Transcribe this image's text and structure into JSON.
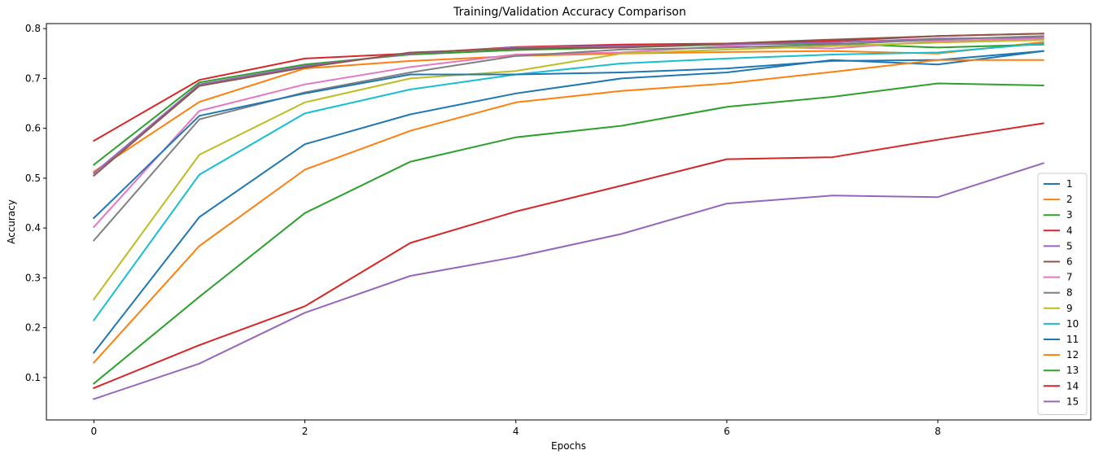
{
  "chart_data": {
    "type": "line",
    "title": "Training/Validation Accuracy Comparison",
    "xlabel": "Epochs",
    "ylabel": "Accuracy",
    "xlim": [
      -0.45,
      9.45
    ],
    "ylim": [
      0.015,
      0.81
    ],
    "xticks": [
      0,
      2,
      4,
      6,
      8
    ],
    "yticks": [
      0.1,
      0.2,
      0.3,
      0.4,
      0.5,
      0.6,
      0.7,
      0.8
    ],
    "x": [
      0,
      1,
      2,
      3,
      4,
      5,
      6,
      7,
      8,
      9
    ],
    "grid": false,
    "legend_position": "lower-right",
    "series": [
      {
        "name": "1",
        "color": "#1f77b4",
        "values": [
          0.15,
          0.422,
          0.568,
          0.628,
          0.67,
          0.7,
          0.712,
          0.737,
          0.728,
          0.755
        ]
      },
      {
        "name": "2",
        "color": "#ff7f0e",
        "values": [
          0.513,
          0.653,
          0.72,
          0.735,
          0.745,
          0.75,
          0.753,
          0.755,
          0.75,
          0.773
        ]
      },
      {
        "name": "3",
        "color": "#2ca02c",
        "values": [
          0.527,
          0.692,
          0.728,
          0.748,
          0.757,
          0.762,
          0.768,
          0.77,
          0.762,
          0.768
        ]
      },
      {
        "name": "4",
        "color": "#d62728",
        "values": [
          0.575,
          0.697,
          0.74,
          0.75,
          0.763,
          0.768,
          0.77,
          0.775,
          0.785,
          0.79
        ]
      },
      {
        "name": "5",
        "color": "#9467bd",
        "values": [
          0.51,
          0.688,
          0.725,
          0.75,
          0.762,
          0.765,
          0.768,
          0.772,
          0.78,
          0.782
        ]
      },
      {
        "name": "6",
        "color": "#8c564b",
        "values": [
          0.505,
          0.685,
          0.722,
          0.752,
          0.76,
          0.762,
          0.77,
          0.778,
          0.785,
          0.79
        ]
      },
      {
        "name": "7",
        "color": "#e377c2",
        "values": [
          0.402,
          0.635,
          0.688,
          0.723,
          0.748,
          0.752,
          0.765,
          0.76,
          0.775,
          0.78
        ]
      },
      {
        "name": "8",
        "color": "#7f7f7f",
        "values": [
          0.375,
          0.618,
          0.672,
          0.712,
          0.745,
          0.758,
          0.762,
          0.768,
          0.778,
          0.785
        ]
      },
      {
        "name": "9",
        "color": "#bcbd22",
        "values": [
          0.257,
          0.547,
          0.652,
          0.7,
          0.715,
          0.75,
          0.758,
          0.765,
          0.772,
          0.777
        ]
      },
      {
        "name": "10",
        "color": "#17becf",
        "values": [
          0.215,
          0.507,
          0.63,
          0.678,
          0.708,
          0.73,
          0.74,
          0.748,
          0.752,
          0.77
        ]
      },
      {
        "name": "11",
        "color": "#1f77b4",
        "values": [
          0.42,
          0.625,
          0.67,
          0.708,
          0.708,
          0.712,
          0.72,
          0.735,
          0.737,
          0.755
        ]
      },
      {
        "name": "12",
        "color": "#ff7f0e",
        "values": [
          0.13,
          0.364,
          0.517,
          0.595,
          0.652,
          0.675,
          0.69,
          0.713,
          0.737,
          0.737
        ]
      },
      {
        "name": "13",
        "color": "#2ca02c",
        "values": [
          0.088,
          0.262,
          0.43,
          0.533,
          0.582,
          0.605,
          0.643,
          0.663,
          0.69,
          0.686
        ]
      },
      {
        "name": "14",
        "color": "#d62728",
        "values": [
          0.079,
          0.165,
          0.243,
          0.37,
          0.433,
          0.485,
          0.538,
          0.542,
          0.577,
          0.61
        ]
      },
      {
        "name": "15",
        "color": "#9467bd",
        "values": [
          0.057,
          0.128,
          0.23,
          0.304,
          0.342,
          0.388,
          0.449,
          0.465,
          0.462,
          0.53
        ]
      }
    ]
  }
}
